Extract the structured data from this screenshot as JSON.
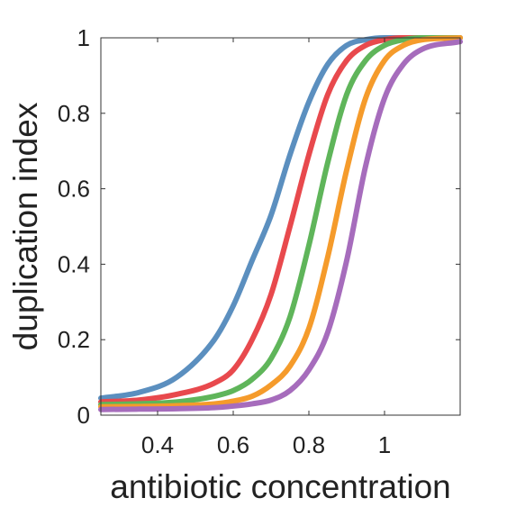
{
  "chart_data": {
    "type": "line",
    "title": "",
    "xlabel": "antibiotic concentration",
    "ylabel": "duplication index",
    "xlim": [
      0.25,
      1.2
    ],
    "ylim": [
      0,
      1
    ],
    "xticks": [
      {
        "value": 0.4,
        "label": "0.4"
      },
      {
        "value": 0.6,
        "label": "0.6"
      },
      {
        "value": 0.8,
        "label": "0.8"
      },
      {
        "value": 1.0,
        "label": "1"
      }
    ],
    "yticks": [
      {
        "value": 0,
        "label": "0"
      },
      {
        "value": 0.2,
        "label": "0.2"
      },
      {
        "value": 0.4,
        "label": "0.4"
      },
      {
        "value": 0.6,
        "label": "0.6"
      },
      {
        "value": 0.8,
        "label": "0.8"
      },
      {
        "value": 1.0,
        "label": "1"
      }
    ],
    "grid": false,
    "legend": "none",
    "series": [
      {
        "color": "#5b8fbf",
        "x": [
          0.25,
          0.35,
          0.45,
          0.55,
          0.6,
          0.65,
          0.7,
          0.75,
          0.8,
          0.85,
          0.9,
          0.95,
          1.0,
          1.05,
          1.1,
          1.2
        ],
        "y": [
          0.045,
          0.06,
          0.1,
          0.2,
          0.29,
          0.41,
          0.53,
          0.69,
          0.83,
          0.93,
          0.98,
          0.995,
          1.0,
          1.0,
          1.0,
          1.0
        ]
      },
      {
        "color": "#e8494d",
        "x": [
          0.25,
          0.35,
          0.45,
          0.55,
          0.6,
          0.65,
          0.7,
          0.75,
          0.8,
          0.85,
          0.9,
          0.95,
          1.0,
          1.05,
          1.1,
          1.2
        ],
        "y": [
          0.035,
          0.04,
          0.055,
          0.085,
          0.12,
          0.2,
          0.32,
          0.5,
          0.69,
          0.85,
          0.94,
          0.98,
          0.995,
          1.0,
          1.0,
          1.0
        ]
      },
      {
        "color": "#5fb55a",
        "x": [
          0.25,
          0.35,
          0.45,
          0.55,
          0.6,
          0.65,
          0.7,
          0.75,
          0.8,
          0.85,
          0.9,
          0.95,
          1.0,
          1.05,
          1.1,
          1.2
        ],
        "y": [
          0.028,
          0.03,
          0.035,
          0.05,
          0.065,
          0.095,
          0.15,
          0.26,
          0.45,
          0.67,
          0.85,
          0.94,
          0.98,
          0.995,
          1.0,
          1.0
        ]
      },
      {
        "color": "#f59b2b",
        "x": [
          0.25,
          0.35,
          0.45,
          0.55,
          0.6,
          0.65,
          0.7,
          0.75,
          0.8,
          0.85,
          0.9,
          0.95,
          1.0,
          1.05,
          1.1,
          1.2
        ],
        "y": [
          0.022,
          0.023,
          0.025,
          0.03,
          0.037,
          0.05,
          0.08,
          0.13,
          0.23,
          0.42,
          0.65,
          0.84,
          0.94,
          0.98,
          0.995,
          1.0
        ]
      },
      {
        "color": "#a66cbc",
        "x": [
          0.25,
          0.35,
          0.45,
          0.55,
          0.6,
          0.65,
          0.7,
          0.75,
          0.8,
          0.85,
          0.9,
          0.95,
          1.0,
          1.05,
          1.1,
          1.2
        ],
        "y": [
          0.015,
          0.016,
          0.017,
          0.02,
          0.024,
          0.03,
          0.04,
          0.065,
          0.12,
          0.22,
          0.41,
          0.66,
          0.84,
          0.93,
          0.97,
          0.99
        ]
      }
    ]
  }
}
